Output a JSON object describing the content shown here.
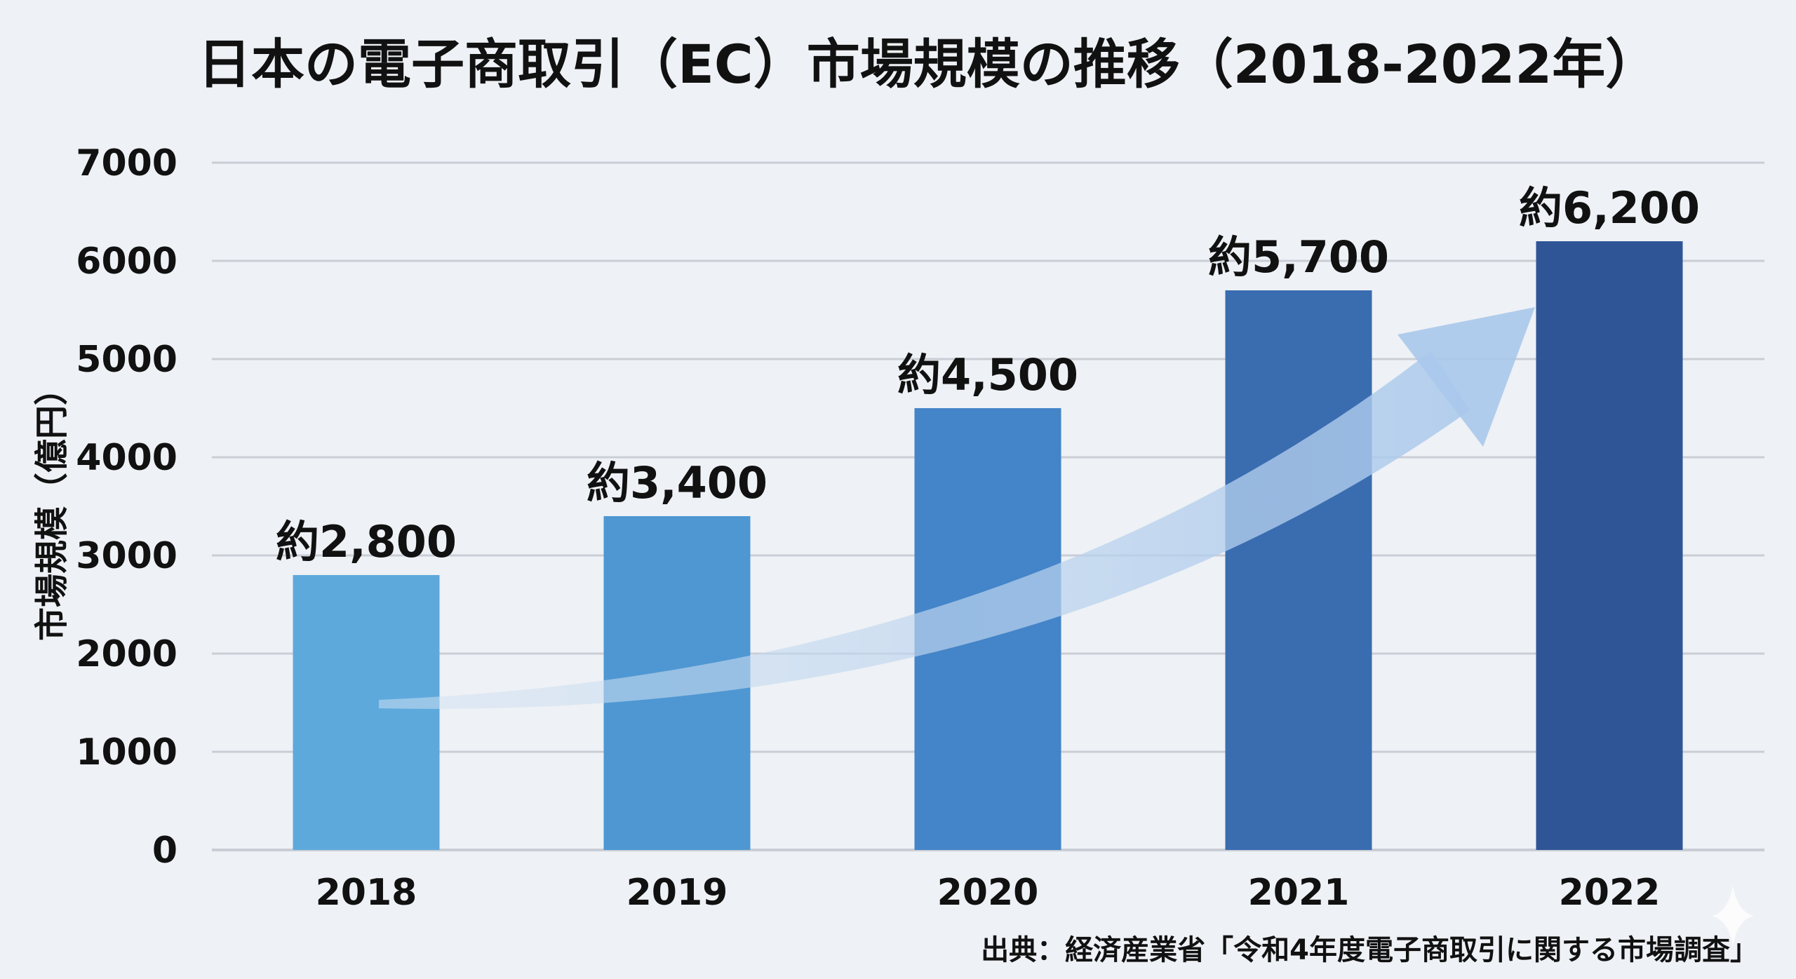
{
  "chart_data": {
    "type": "bar",
    "title": "日本の電子商取引（EC）市場規模の推移（2018-2022年）",
    "xlabel": "",
    "ylabel": "市場規模（億円）",
    "categories": [
      "2018",
      "2019",
      "2020",
      "2021",
      "2022"
    ],
    "values": [
      2800,
      3400,
      4500,
      5700,
      6200
    ],
    "data_labels": [
      "約2,800",
      "約3,400",
      "約4,500",
      "約5,700",
      "約6,200"
    ],
    "ylim": [
      0,
      7000
    ],
    "yticks": [
      0,
      1000,
      2000,
      3000,
      4000,
      5000,
      6000,
      7000
    ],
    "grid": true,
    "legend": "none",
    "source": "出典：経済産業省「令和4年度電子商取引に関する市場調査」",
    "colors": {
      "bars": [
        "#5ea9dc",
        "#4e97d2",
        "#4484c8",
        "#3a6cb0",
        "#2f5596"
      ],
      "trend_arrow": "#b8d2ee",
      "grid": "#c9ced6",
      "background": "#eef1f5"
    },
    "annotations": [
      "upward-trend-arrow"
    ]
  }
}
